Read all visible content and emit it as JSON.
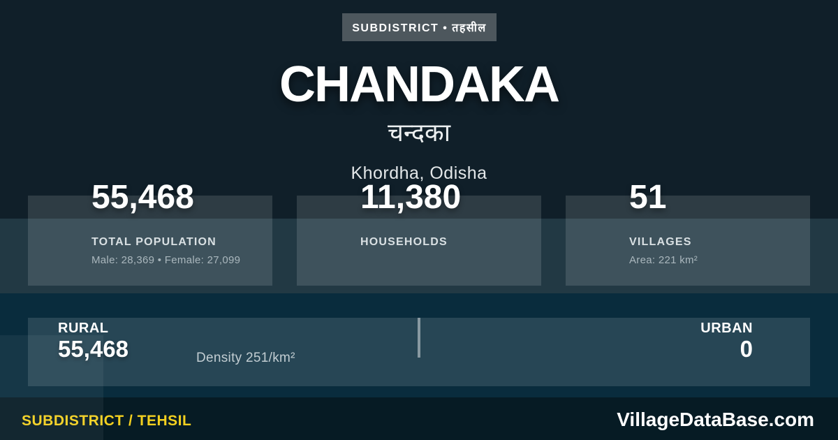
{
  "badge": {
    "label": "SUBDISTRICT • तहसील"
  },
  "header": {
    "title": "CHANDAKA",
    "title_local": "चन्दका",
    "location": "Khordha, Odisha"
  },
  "stats": [
    {
      "value": "55,468",
      "label": "TOTAL POPULATION",
      "detail": "Male: 28,369 • Female: 27,099"
    },
    {
      "value": "11,380",
      "label": "HOUSEHOLDS",
      "detail": ""
    },
    {
      "value": "51",
      "label": "VILLAGES",
      "detail": "Area: 221 km²"
    }
  ],
  "rural_urban": {
    "rural_label": "RURAL",
    "rural_value": "55,468",
    "density": "Density 251/km²",
    "urban_label": "URBAN",
    "urban_value": "0"
  },
  "footer": {
    "type_label": "SUBDISTRICT / TEHSIL",
    "brand": "VillageDataBase.com"
  },
  "colors": {
    "page_bg": "#101f29",
    "light_band_bg": "#223944",
    "blue_band_bg": "#092c3d",
    "footer_bg": "#061b24",
    "badge_bg": "#4d575d",
    "accent_yellow": "#f3d01f",
    "text_white": "#ffffff"
  }
}
